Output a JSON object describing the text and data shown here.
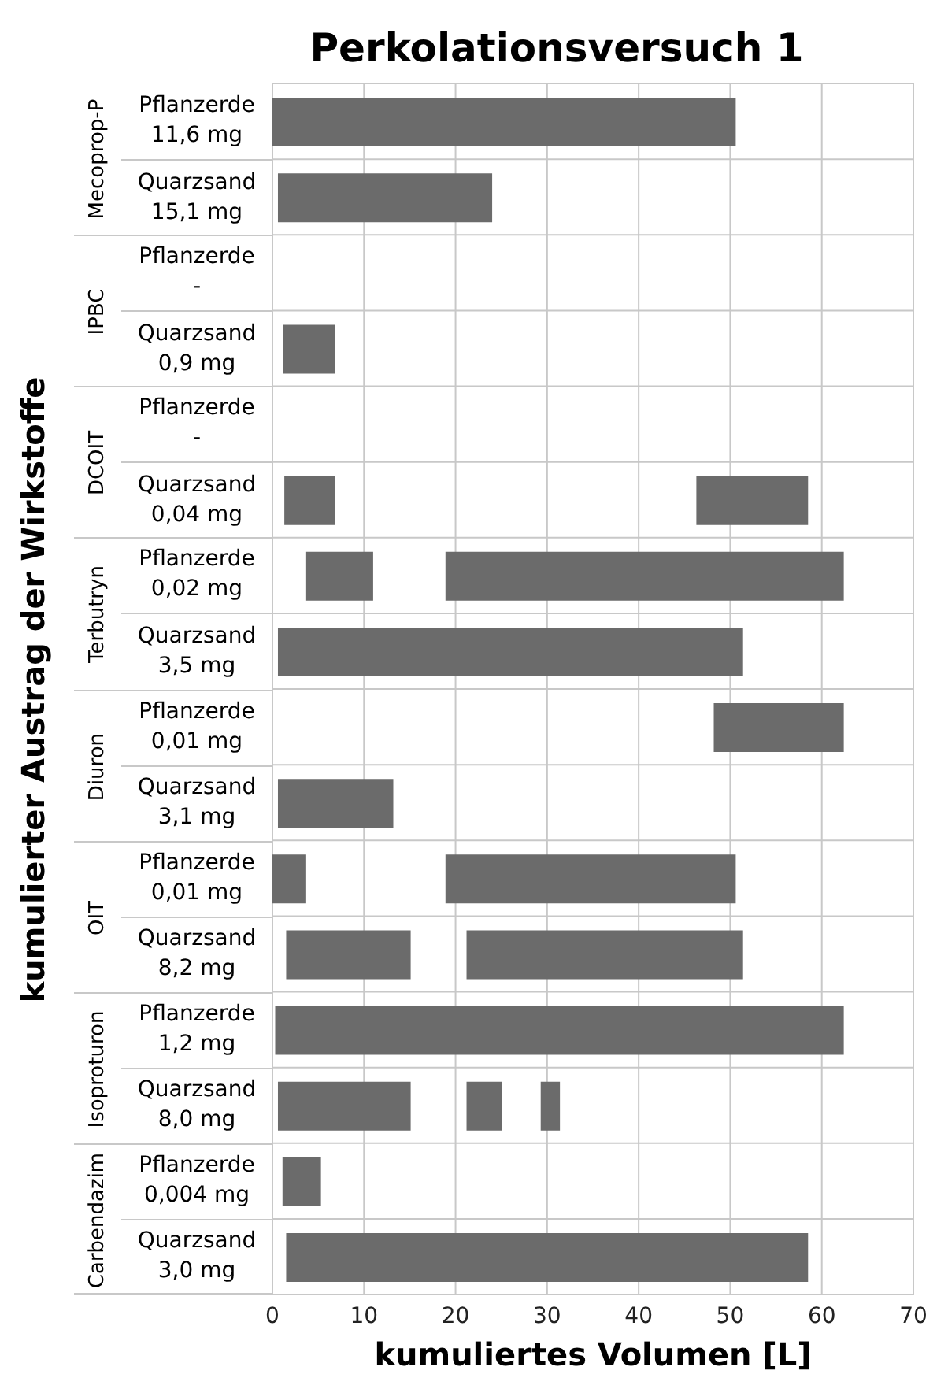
{
  "chart_data": {
    "type": "bar",
    "orientation": "horizontal",
    "title": "Perkolationsversuch 1",
    "xlabel": "kumuliertes Volumen [L]",
    "ylabel": "kumulierter Austrag der Wirkstoffe",
    "categories": [
      "Pflanzerde 11,6 mg",
      "Quarzsand 15,1 mg",
      "Pflanzerde -",
      "Quarzsand 0,9 mg",
      "Pflanzerde -",
      "Quarzsand 0,04 mg",
      "Pflanzerde 0,02 mg",
      "Quarzsand 3,5 mg",
      "Pflanzerde 0,01 mg",
      "Quarzsand 3,1 mg",
      "Pflanzerde 0,01 mg",
      "Quarzsand 8,2 mg",
      "Pflanzerde 1,2 mg",
      "Quarzsand 8,0 mg",
      "Pflanzerde 0,004 mg",
      "Quarzsand 3,0 mg"
    ],
    "annotations": [
      "Mecoprop-P",
      "IPBC",
      "DCOIT",
      "Terbutryn",
      "Diuron",
      "OIT",
      "Isoproturon",
      "Carbendazim"
    ],
    "series": [
      {
        "color": "#6b6b6b",
        "base": [
          0,
          0.6,
          null,
          1.2,
          null,
          1.3,
          3.6,
          0.6,
          48.2,
          0.6,
          0,
          1.5,
          0.3,
          0.6,
          1.1,
          1.5
        ],
        "values": [
          50.6,
          23.4,
          null,
          5.6,
          null,
          5.5,
          7.4,
          50.8,
          14.2,
          12.6,
          3.6,
          13.6,
          62.1,
          14.5,
          4.2,
          57
        ]
      },
      {
        "color": "#6b6b6b",
        "base": [
          null,
          null,
          null,
          null,
          null,
          46.3,
          18.9,
          null,
          null,
          null,
          18.9,
          21.2,
          null,
          21.2,
          null,
          null
        ],
        "values": [
          null,
          null,
          null,
          null,
          null,
          12.2,
          43.5,
          null,
          null,
          null,
          31.7,
          30.2,
          null,
          3.9,
          null,
          null
        ]
      },
      {
        "color": "#6b6b6b",
        "base": [
          null,
          null,
          null,
          null,
          null,
          null,
          null,
          null,
          null,
          null,
          null,
          null,
          null,
          29.3,
          null,
          null
        ],
        "values": [
          null,
          null,
          null,
          null,
          null,
          null,
          null,
          null,
          null,
          null,
          null,
          null,
          null,
          2.1,
          null,
          null
        ]
      }
    ],
    "xlim": [
      0,
      70
    ],
    "xticks": [
      0,
      10,
      20,
      30,
      40,
      50,
      60,
      70
    ],
    "grid": true
  }
}
